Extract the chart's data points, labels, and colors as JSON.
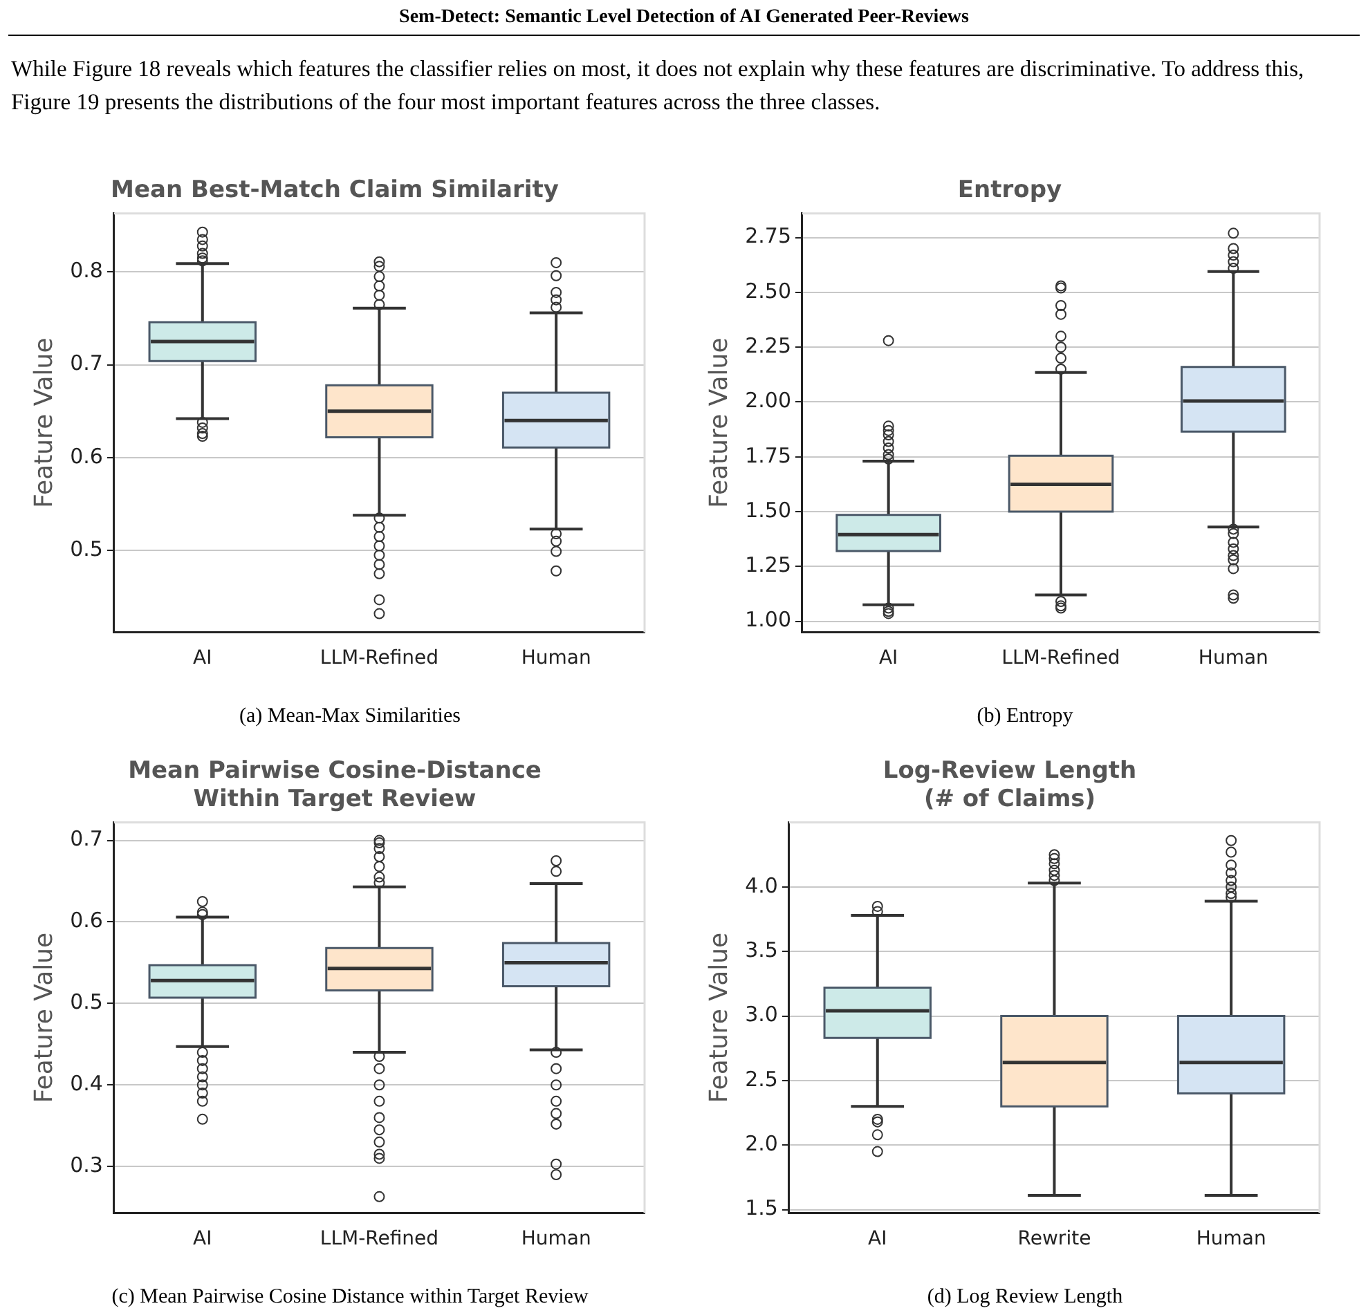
{
  "chart_data": [
    {
      "type": "other",
      "title": "Sem-Detect: Semantic Level Detection of AI Generated Peer-Reviews",
      "annotations": [
        "While Figure 18 reveals which features the classifier relies on most, it does not explain why these features are discriminative. To address this, Figure 19 presents the distributions of the four most important features across the three classes."
      ]
    },
    {
      "type": "box",
      "title": "Mean Best-Match Claim Similarity",
      "ylabel": "Feature Value",
      "categories": [
        "AI",
        "LLM-Refined",
        "Human"
      ],
      "colors": [
        "#cdeae8",
        "#fee5cb",
        "#d5e4f3"
      ],
      "boxes": [
        {
          "low": 0.642,
          "q1": 0.704,
          "median": 0.725,
          "q3": 0.746,
          "high": 0.809,
          "outliers": [
            0.843,
            0.835,
            0.828,
            0.82,
            0.815,
            0.812,
            0.638,
            0.632,
            0.626,
            0.623
          ]
        },
        {
          "low": 0.538,
          "q1": 0.622,
          "median": 0.65,
          "q3": 0.678,
          "high": 0.761,
          "outliers": [
            0.811,
            0.806,
            0.795,
            0.785,
            0.775,
            0.765,
            0.535,
            0.525,
            0.515,
            0.505,
            0.495,
            0.485,
            0.475,
            0.447,
            0.432
          ]
        },
        {
          "low": 0.523,
          "q1": 0.611,
          "median": 0.64,
          "q3": 0.67,
          "high": 0.756,
          "outliers": [
            0.81,
            0.796,
            0.778,
            0.77,
            0.762,
            0.518,
            0.51,
            0.499,
            0.478
          ]
        }
      ],
      "ylim": [
        0.412,
        0.863
      ],
      "yticks": [
        0.5,
        0.6,
        0.7,
        0.8
      ],
      "grid": "y",
      "legend": false,
      "annotations": [
        "(a) Mean-Max Similarities"
      ]
    },
    {
      "type": "box",
      "title": "Entropy",
      "ylabel": "Feature Value",
      "categories": [
        "AI",
        "LLM-Refined",
        "Human"
      ],
      "colors": [
        "#cdeae8",
        "#fee5cb",
        "#d5e4f3"
      ],
      "boxes": [
        {
          "low": 1.075,
          "q1": 1.32,
          "median": 1.395,
          "q3": 1.485,
          "high": 1.73,
          "outliers": [
            2.28,
            1.89,
            1.87,
            1.85,
            1.82,
            1.79,
            1.76,
            1.74,
            1.06,
            1.045,
            1.035
          ]
        },
        {
          "low": 1.12,
          "q1": 1.5,
          "median": 1.625,
          "q3": 1.755,
          "high": 2.135,
          "outliers": [
            2.53,
            2.52,
            2.44,
            2.4,
            2.3,
            2.25,
            2.2,
            2.15,
            1.09,
            1.07,
            1.06
          ]
        },
        {
          "low": 1.43,
          "q1": 1.865,
          "median": 2.005,
          "q3": 2.16,
          "high": 2.595,
          "outliers": [
            2.77,
            2.7,
            2.67,
            2.64,
            2.61,
            1.42,
            1.4,
            1.36,
            1.33,
            1.3,
            1.28,
            1.24,
            1.12,
            1.105
          ]
        }
      ],
      "ylim": [
        0.95,
        2.86
      ],
      "yticks": [
        {
          "value": 1,
          "label": "1.00"
        },
        {
          "value": 1.25,
          "label": "1.25"
        },
        {
          "value": 1.5,
          "label": "1.50"
        },
        {
          "value": 1.75,
          "label": "1.75"
        },
        {
          "value": 2,
          "label": "2.00"
        },
        {
          "value": 2.25,
          "label": "2.25"
        },
        {
          "value": 2.5,
          "label": "2.50"
        },
        {
          "value": 2.75,
          "label": "2.75"
        }
      ],
      "grid": "y",
      "legend": false,
      "annotations": [
        "(b) Entropy"
      ]
    },
    {
      "type": "box",
      "title": "Mean Pairwise Cosine-Distance\nWithin Target Review",
      "ylabel": "Feature Value",
      "categories": [
        "AI",
        "LLM-Refined",
        "Human"
      ],
      "colors": [
        "#cdeae8",
        "#fee5cb",
        "#d5e4f3"
      ],
      "boxes": [
        {
          "low": 0.447,
          "q1": 0.507,
          "median": 0.528,
          "q3": 0.547,
          "high": 0.606,
          "outliers": [
            0.625,
            0.612,
            0.609,
            0.44,
            0.43,
            0.42,
            0.41,
            0.4,
            0.39,
            0.38,
            0.358
          ]
        },
        {
          "low": 0.44,
          "q1": 0.516,
          "median": 0.543,
          "q3": 0.568,
          "high": 0.643,
          "outliers": [
            0.7,
            0.697,
            0.69,
            0.68,
            0.668,
            0.655,
            0.648,
            0.435,
            0.42,
            0.4,
            0.38,
            0.36,
            0.345,
            0.33,
            0.315,
            0.31,
            0.263
          ]
        },
        {
          "low": 0.443,
          "q1": 0.521,
          "median": 0.55,
          "q3": 0.574,
          "high": 0.647,
          "outliers": [
            0.675,
            0.662,
            0.44,
            0.42,
            0.4,
            0.38,
            0.365,
            0.352,
            0.303,
            0.29
          ]
        }
      ],
      "ylim": [
        0.243,
        0.722
      ],
      "yticks": [
        0.3,
        0.4,
        0.5,
        0.6,
        0.7
      ],
      "grid": "y",
      "legend": false,
      "annotations": [
        "(c) Mean Pairwise Cosine Distance within Target Review"
      ]
    },
    {
      "type": "box",
      "title": "Log-Review Length\n(# of Claims)",
      "ylabel": "Feature Value",
      "categories": [
        "AI",
        "Rewrite",
        "Human"
      ],
      "colors": [
        "#cdeae8",
        "#fee5cb",
        "#d5e4f3"
      ],
      "boxes": [
        {
          "low": 2.3,
          "q1": 2.83,
          "median": 3.04,
          "q3": 3.22,
          "high": 3.78,
          "outliers": [
            3.85,
            3.81,
            2.2,
            2.18,
            2.08,
            1.95
          ]
        },
        {
          "low": 1.61,
          "q1": 2.3,
          "median": 2.64,
          "q3": 3.0,
          "high": 4.03,
          "outliers": [
            4.25,
            4.22,
            4.18,
            4.13,
            4.09,
            4.05
          ]
        },
        {
          "low": 1.61,
          "q1": 2.4,
          "median": 2.64,
          "q3": 3.0,
          "high": 3.89,
          "outliers": [
            4.36,
            4.27,
            4.17,
            4.11,
            4.05,
            4.0,
            3.95,
            3.92
          ]
        }
      ],
      "ylim": [
        1.474,
        4.5
      ],
      "yticks": [
        {
          "value": 1.5,
          "label": "1.5"
        },
        {
          "value": 2,
          "label": "2.0"
        },
        {
          "value": 2.5,
          "label": "2.5"
        },
        {
          "value": 3,
          "label": "3.0"
        },
        {
          "value": 3.5,
          "label": "3.5"
        },
        {
          "value": 4,
          "label": "4.0"
        }
      ],
      "grid": "y",
      "legend": false,
      "annotations": [
        "(d) Log Review Length"
      ]
    }
  ]
}
